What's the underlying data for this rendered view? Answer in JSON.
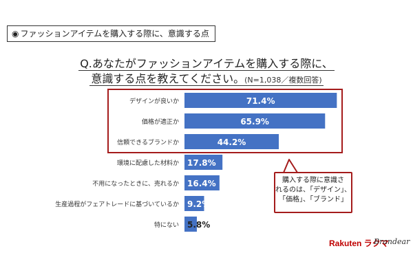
{
  "tag": {
    "bullet": "◉",
    "text": "ファッションアイテムを購入する際に、意識する点"
  },
  "question": {
    "line1": "Q.あなたがファッションアイテムを購入する際に、",
    "line2": "意識する点を教えてください。",
    "note": "(N=1,038／複数回答)"
  },
  "chart_data": {
    "type": "bar",
    "orientation": "horizontal",
    "categories": [
      "デザインが良いか",
      "価格が適正か",
      "信頼できるブランドか",
      "環境に配慮した材料か",
      "不用になったときに、売れるか",
      "生産過程がフェアトレードに基づいているか",
      "特にない"
    ],
    "values": [
      71.4,
      65.9,
      44.2,
      17.8,
      16.4,
      9.2,
      5.8
    ],
    "value_labels": [
      "71.4%",
      "65.9%",
      "44.2%",
      "17.8%",
      "16.4%",
      "9.2%",
      "5.8%"
    ],
    "unit": "%",
    "xlim": [
      0,
      80
    ],
    "highlighted": [
      0,
      1,
      2
    ],
    "bar_color": "#4472c4",
    "highlight_border_color": "#a41b1b",
    "grid": false
  },
  "callout": {
    "lines": [
      "購入する際に意識さ",
      "れるのは、「デザイン」、",
      "「価格」、「ブランド」"
    ]
  },
  "logos": {
    "rakuten": "Rakuten ラクマ",
    "brandear": "Brandear"
  }
}
